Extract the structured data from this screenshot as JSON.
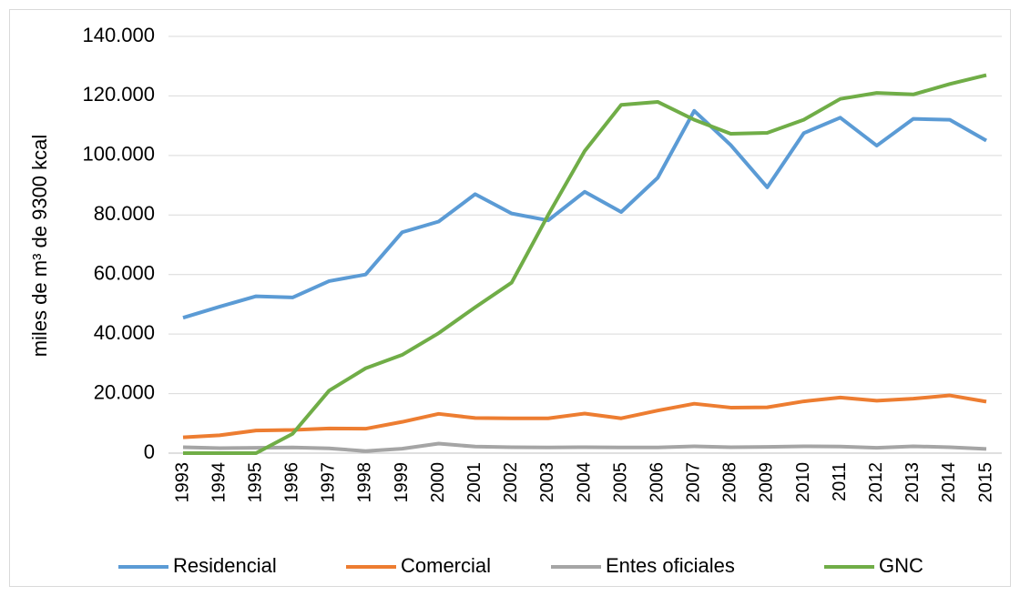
{
  "chart_data": {
    "type": "line",
    "y_label": "miles de m³ de 9300 kcal",
    "categories": [
      "1993",
      "1994",
      "1995",
      "1996",
      "1997",
      "1998",
      "1999",
      "2000",
      "2001",
      "2002",
      "2003",
      "2004",
      "2005",
      "2006",
      "2007",
      "2008",
      "2009",
      "2010",
      "2011",
      "2012",
      "2013",
      "2014",
      "2015"
    ],
    "series": [
      {
        "name": "Residencial",
        "color": "#5b9bd5",
        "values": [
          45500,
          49200,
          52700,
          52300,
          57800,
          60000,
          74200,
          77800,
          87000,
          80500,
          78200,
          87800,
          81000,
          92500,
          115000,
          103500,
          89300,
          107500,
          112700,
          103300,
          112300,
          112000,
          105000
        ]
      },
      {
        "name": "Comercial",
        "color": "#ed7d31",
        "values": [
          5300,
          6000,
          7600,
          7800,
          8300,
          8200,
          10500,
          13200,
          11800,
          11700,
          11700,
          13300,
          11700,
          14300,
          16600,
          15300,
          15400,
          17400,
          18700,
          17600,
          18300,
          19400,
          17300
        ]
      },
      {
        "name": "Entes oficiales",
        "color": "#a5a5a5",
        "values": [
          2000,
          1700,
          1800,
          1900,
          1600,
          700,
          1500,
          3200,
          2200,
          2000,
          1900,
          2000,
          1900,
          1900,
          2300,
          2000,
          2100,
          2300,
          2200,
          1800,
          2300,
          2000,
          1400
        ]
      },
      {
        "name": "GNC",
        "color": "#70ad47",
        "values": [
          0,
          0,
          0,
          6500,
          21000,
          28500,
          33000,
          40300,
          49000,
          57300,
          80000,
          101500,
          117000,
          118000,
          112000,
          107300,
          107600,
          112000,
          119000,
          121000,
          120500,
          124000,
          127000
        ]
      }
    ],
    "ylim": [
      0,
      140000
    ],
    "yticks": [
      0,
      {
        "value": 20000,
        "label": "20.000"
      },
      {
        "value": 40000,
        "label": "40.000"
      },
      {
        "value": 60000,
        "label": "60.000"
      },
      {
        "value": 80000,
        "label": "80.000"
      },
      {
        "value": 100000,
        "label": "100.000"
      },
      {
        "value": 120000,
        "label": "120.000"
      },
      {
        "value": 140000,
        "label": "140.000"
      }
    ],
    "grid": true,
    "legend": "bottom"
  }
}
